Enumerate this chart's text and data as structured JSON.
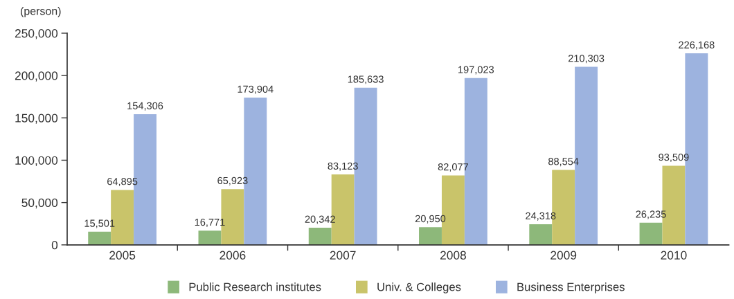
{
  "chart_data": {
    "type": "bar",
    "ylabel": "(person)",
    "categories": [
      "2005",
      "2006",
      "2007",
      "2008",
      "2009",
      "2010"
    ],
    "series": [
      {
        "name": "Public Research institutes",
        "color": "#8db87a",
        "values": [
          15501,
          16771,
          20342,
          20950,
          24318,
          26235
        ],
        "value_labels": [
          "15,501",
          "16,771",
          "20,342",
          "20,950",
          "24,318",
          "26,235"
        ]
      },
      {
        "name": "Univ. & Colleges",
        "color": "#c9c46a",
        "values": [
          64895,
          65923,
          83123,
          82077,
          88554,
          93509
        ],
        "value_labels": [
          "64,895",
          "65,923",
          "83,123",
          "82,077",
          "88,554",
          "93,509"
        ]
      },
      {
        "name": "Business Enterprises",
        "color": "#9db3df",
        "values": [
          154306,
          173904,
          185633,
          197023,
          210303,
          226168
        ],
        "value_labels": [
          "154,306",
          "173,904",
          "185,633",
          "197,023",
          "210,303",
          "226,168"
        ]
      }
    ],
    "ylim": [
      0,
      250000
    ],
    "yticks": [
      {
        "value": 0,
        "label": "0"
      },
      {
        "value": 50000,
        "label": "50,000"
      },
      {
        "value": 100000,
        "label": "100,000"
      },
      {
        "value": 150000,
        "label": "150,000"
      },
      {
        "value": 200000,
        "label": "200,000"
      },
      {
        "value": 250000,
        "label": "250,000"
      }
    ],
    "grid": false,
    "legend": "bottom"
  }
}
